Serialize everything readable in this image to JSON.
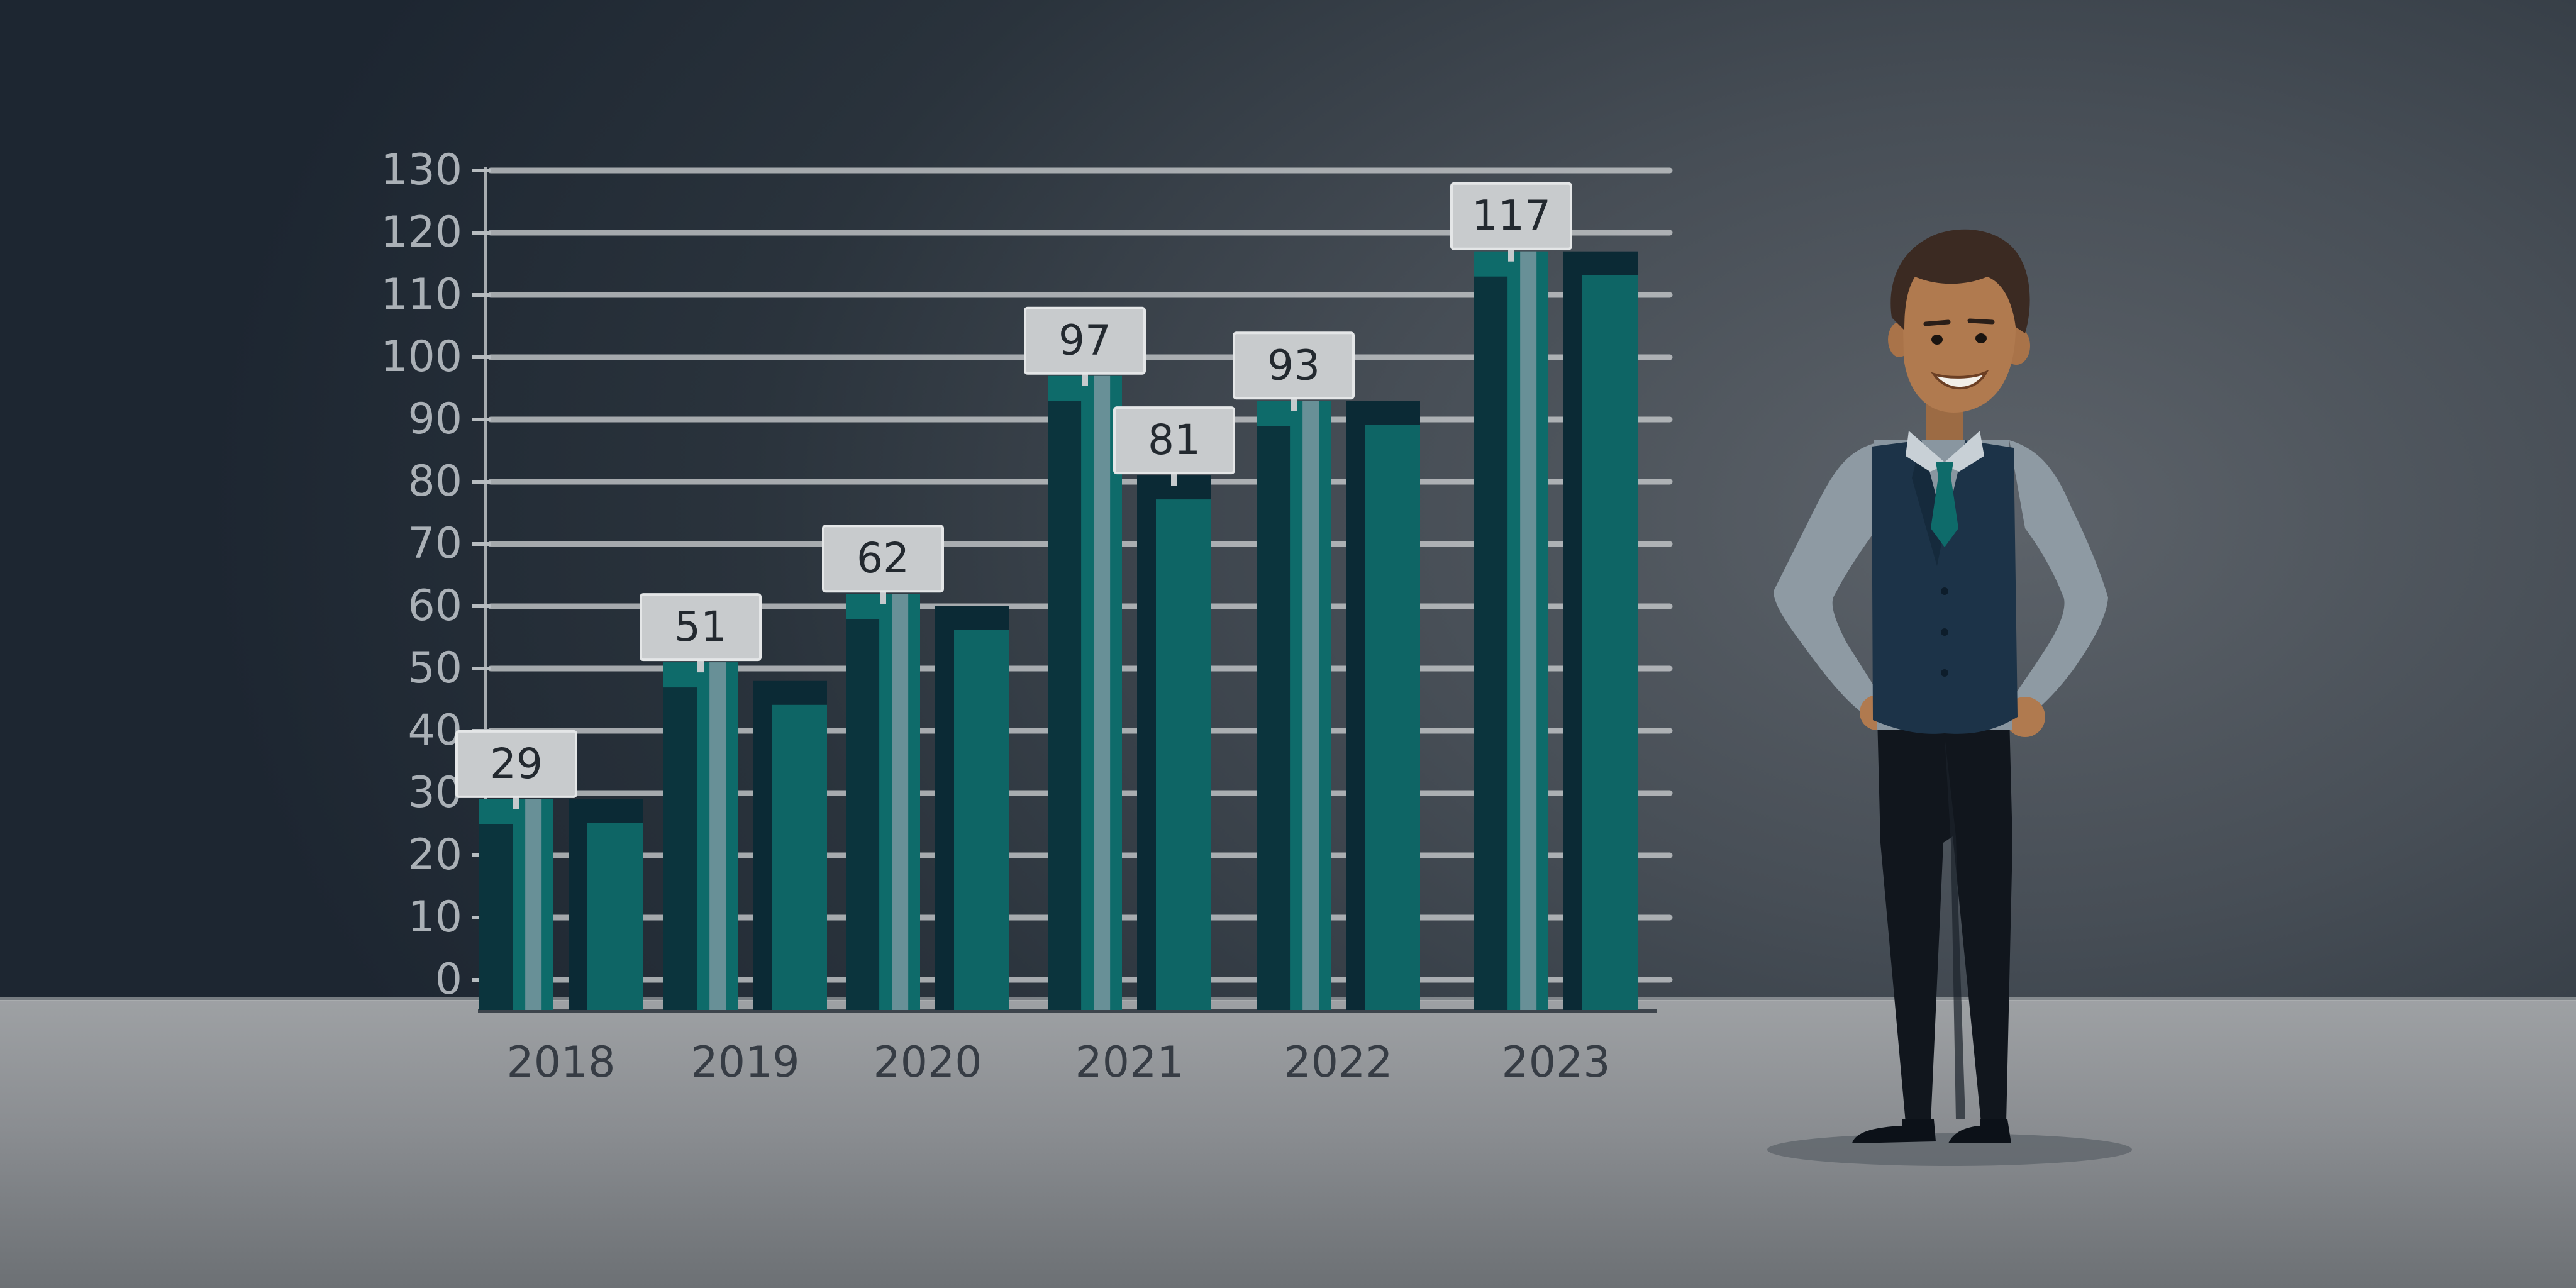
{
  "chart_data": {
    "type": "bar",
    "title": "",
    "xlabel": "",
    "ylabel": "",
    "categories": [
      "2018",
      "2019",
      "2020",
      "2021",
      "2022",
      "2023"
    ],
    "series": [
      {
        "values": [
          29,
          51,
          62,
          97,
          93,
          117
        ]
      },
      {
        "values": [
          29,
          48,
          60,
          81,
          93,
          117
        ]
      }
    ],
    "data_labels": [
      {
        "category": "2018",
        "series": 0,
        "text": "29"
      },
      {
        "category": "2019",
        "series": 0,
        "text": "51"
      },
      {
        "category": "2020",
        "series": 0,
        "text": "62"
      },
      {
        "category": "2021",
        "series": 0,
        "text": "97"
      },
      {
        "category": "2021",
        "series": 1,
        "text": "81"
      },
      {
        "category": "2022",
        "series": 0,
        "text": "93"
      },
      {
        "category": "2023",
        "series": 0,
        "text": "117"
      }
    ],
    "ylim": [
      0,
      130
    ],
    "yticks": [
      "0",
      "10",
      "20",
      "30",
      "40",
      "50",
      "60",
      "70",
      "80",
      "90",
      "100",
      "110",
      "120",
      "130"
    ],
    "grid": true,
    "legend": "none",
    "colors": {
      "bar_dark": "#0b2a35",
      "bar_teal": "#0e6b6a",
      "bar_light": "#7f9aa2",
      "gridline": "#c9ccce"
    }
  },
  "illustration": {
    "subject": "smiling businessman in vest and tie, hands on hips",
    "colors": {
      "skin": "#b07a4f",
      "hair": "#3b2a22",
      "shirt": "#8996a0",
      "vest": "#1c3348",
      "tie": "#0e6b6a",
      "pants": "#11161d"
    }
  }
}
